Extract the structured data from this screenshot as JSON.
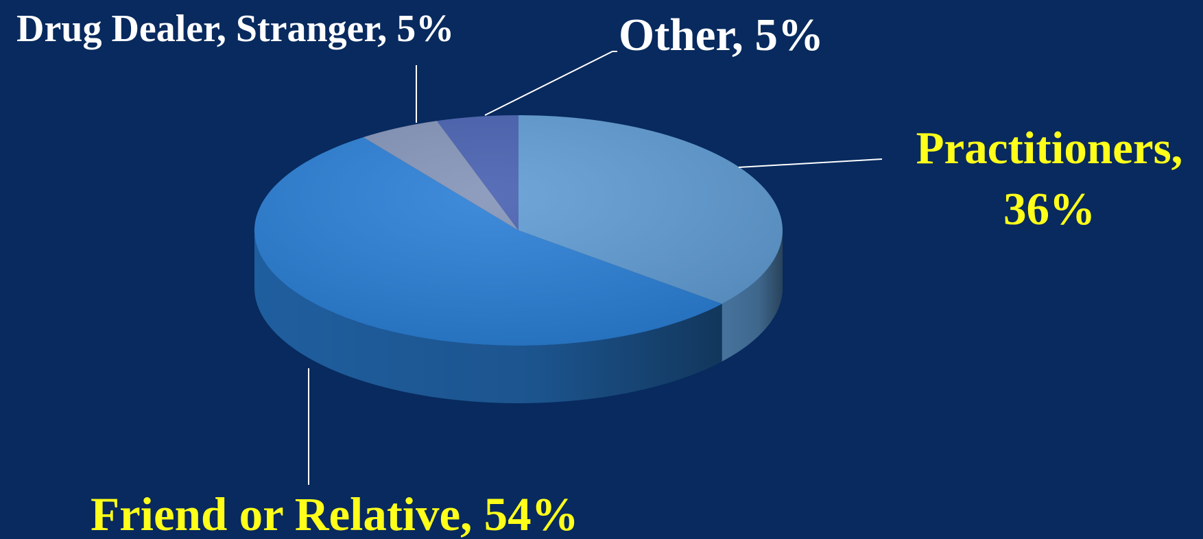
{
  "chart_data": {
    "type": "pie",
    "value_labels": [
      "Practitioners, 36%",
      "Friend or Relative, 54%",
      "Drug Dealer, Stranger, 5%",
      "Other, 5%"
    ],
    "values": [
      36,
      54,
      5,
      5
    ],
    "colors": [
      "#5f9bd3",
      "#2a7fd6",
      "#8393b8",
      "#4760b0"
    ],
    "start_angle": 0,
    "direction": "clockwise"
  }
}
